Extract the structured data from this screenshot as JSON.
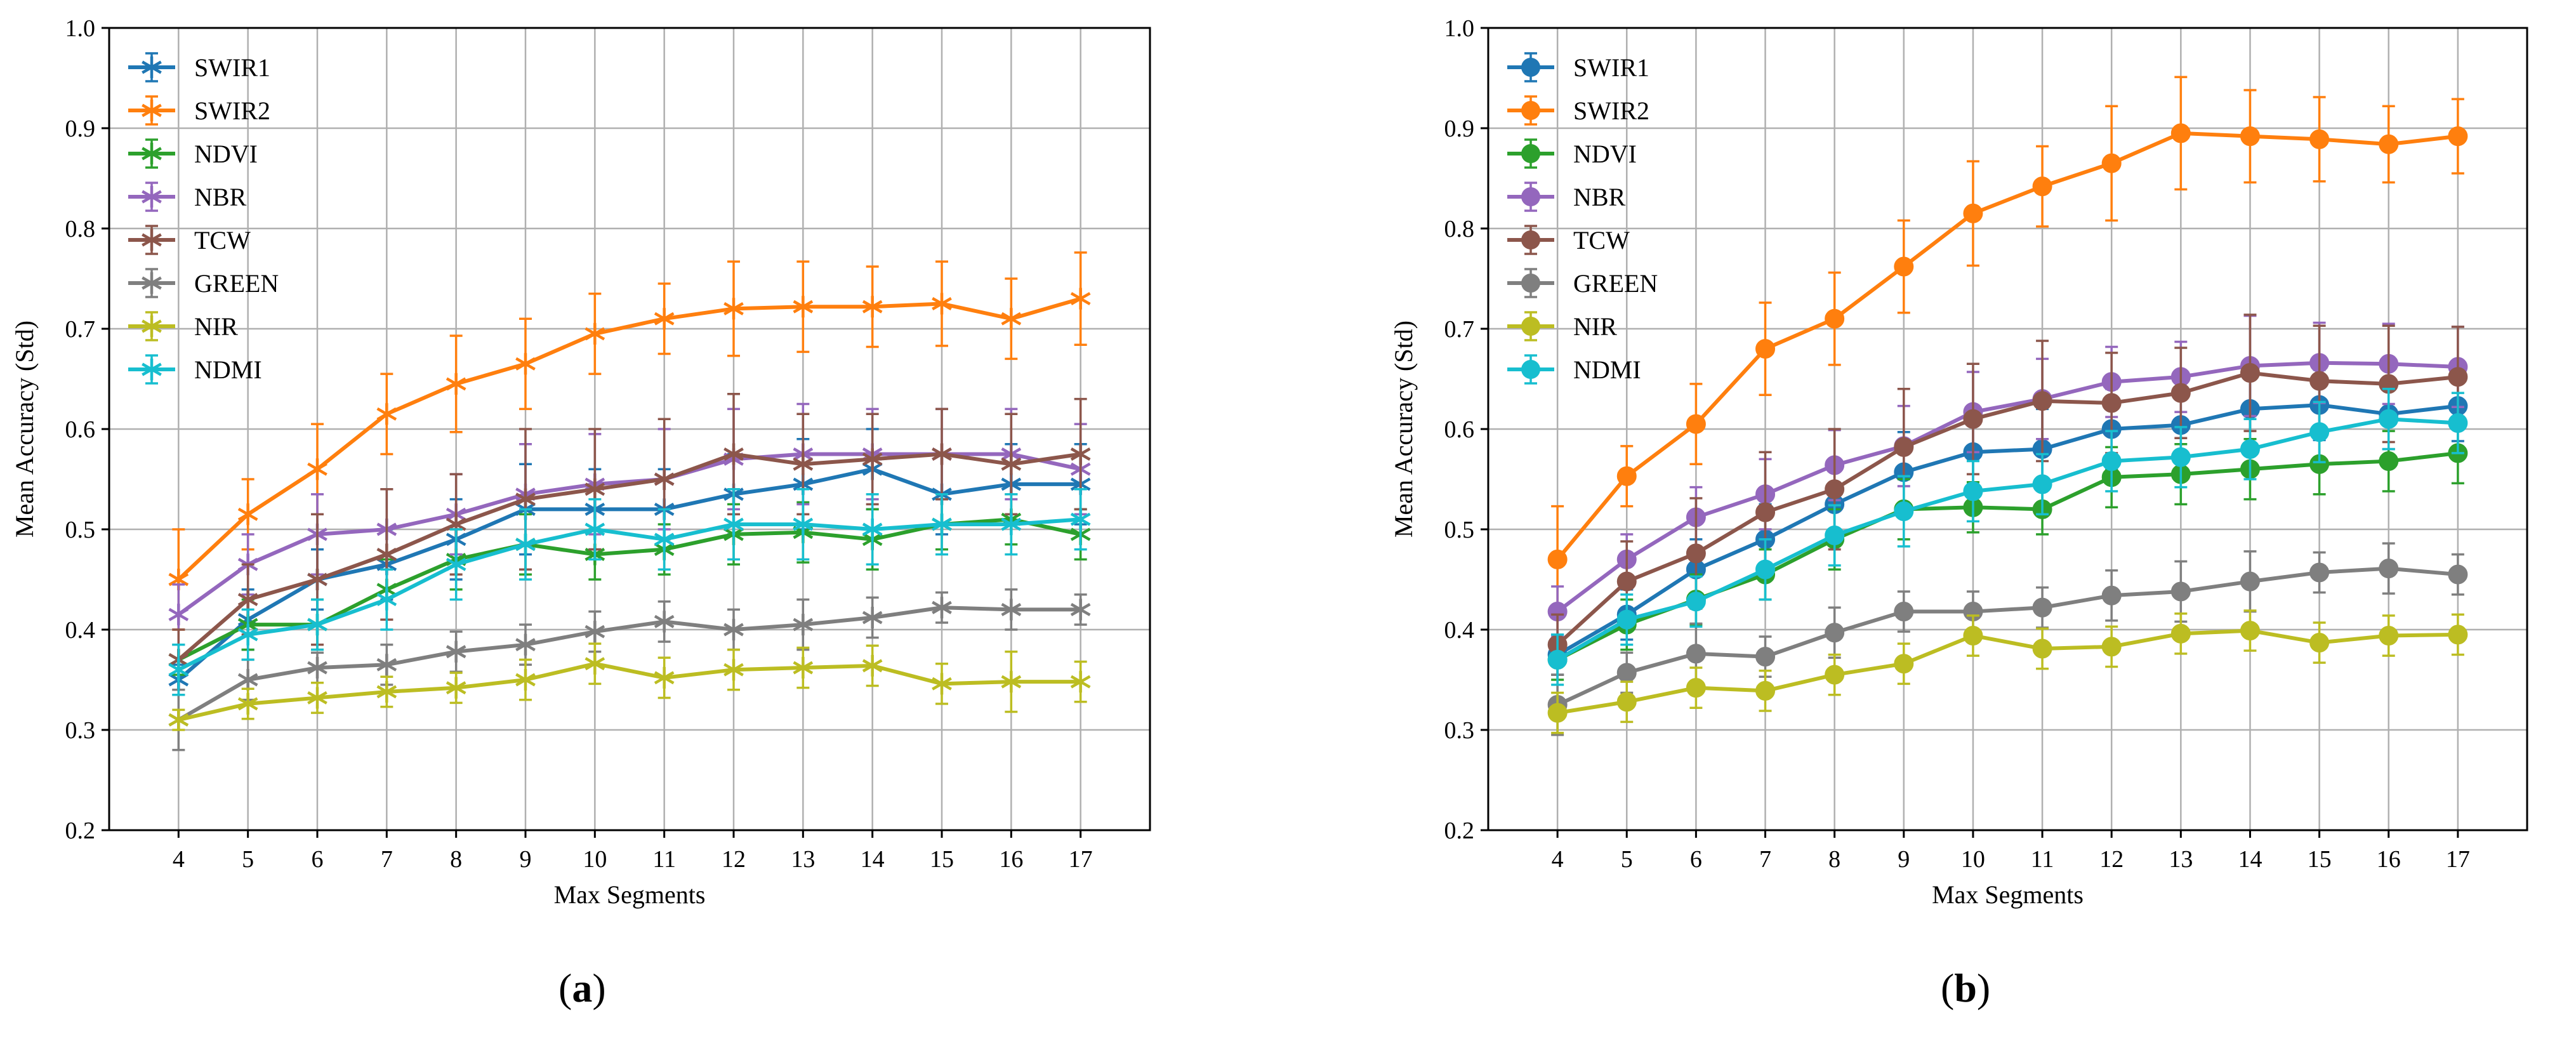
{
  "colors": {
    "SWIR1": "#1f77b4",
    "SWIR2": "#ff7f0e",
    "NDVI": "#2ca02c",
    "NBR": "#9467bd",
    "TCW": "#8c564b",
    "GREEN": "#7f7f7f",
    "NIR": "#bcbd22",
    "NDMI": "#17becf",
    "grid": "#b0b0b0",
    "axis": "#000000"
  },
  "captions": {
    "a": {
      "open": "(",
      "letter": "a",
      "close": ")"
    },
    "b": {
      "open": "(",
      "letter": "b",
      "close": ")"
    }
  },
  "chart_data": [
    {
      "id": "a",
      "type": "line",
      "marker": "star",
      "title": "",
      "xlabel": "Max Segments",
      "ylabel": "Mean Accuracy (Std)",
      "x": [
        4,
        5,
        6,
        7,
        8,
        9,
        10,
        11,
        12,
        13,
        14,
        15,
        16,
        17
      ],
      "xticks": [
        "4",
        "5",
        "6",
        "7",
        "8",
        "9",
        "10",
        "11",
        "12",
        "13",
        "14",
        "15",
        "16",
        "17"
      ],
      "xlim": [
        3,
        18
      ],
      "ylim": [
        0.2,
        1.0
      ],
      "yticks": [
        "0.2",
        "0.3",
        "0.4",
        "0.5",
        "0.6",
        "0.7",
        "0.8",
        "0.9",
        "1.0"
      ],
      "grid": true,
      "legend_position": "top-left",
      "series": [
        {
          "name": "SWIR1",
          "values": [
            0.35,
            0.41,
            0.45,
            0.465,
            0.49,
            0.52,
            0.52,
            0.52,
            0.535,
            0.545,
            0.56,
            0.535,
            0.545,
            0.545
          ],
          "errors": [
            0.015,
            0.03,
            0.03,
            0.035,
            0.04,
            0.045,
            0.04,
            0.04,
            0.04,
            0.045,
            0.04,
            0.04,
            0.04,
            0.04
          ]
        },
        {
          "name": "SWIR2",
          "values": [
            0.45,
            0.515,
            0.56,
            0.615,
            0.645,
            0.665,
            0.695,
            0.71,
            0.72,
            0.722,
            0.722,
            0.725,
            0.71,
            0.73
          ],
          "errors": [
            0.05,
            0.035,
            0.045,
            0.04,
            0.048,
            0.045,
            0.04,
            0.035,
            0.047,
            0.045,
            0.04,
            0.042,
            0.04,
            0.046
          ]
        },
        {
          "name": "NDVI",
          "values": [
            0.37,
            0.405,
            0.405,
            0.44,
            0.47,
            0.485,
            0.475,
            0.48,
            0.495,
            0.497,
            0.49,
            0.505,
            0.51,
            0.495
          ],
          "errors": [
            0.015,
            0.025,
            0.025,
            0.03,
            0.03,
            0.03,
            0.025,
            0.025,
            0.03,
            0.03,
            0.03,
            0.025,
            0.025,
            0.025
          ]
        },
        {
          "name": "NBR",
          "values": [
            0.415,
            0.465,
            0.495,
            0.5,
            0.515,
            0.535,
            0.545,
            0.55,
            0.57,
            0.575,
            0.575,
            0.575,
            0.575,
            0.56
          ],
          "errors": [
            0.03,
            0.03,
            0.04,
            0.04,
            0.04,
            0.05,
            0.05,
            0.05,
            0.05,
            0.05,
            0.045,
            0.045,
            0.045,
            0.045
          ]
        },
        {
          "name": "TCW",
          "values": [
            0.37,
            0.43,
            0.45,
            0.475,
            0.505,
            0.53,
            0.54,
            0.55,
            0.575,
            0.565,
            0.57,
            0.575,
            0.565,
            0.575
          ],
          "errors": [
            0.03,
            0.035,
            0.065,
            0.065,
            0.05,
            0.07,
            0.06,
            0.06,
            0.06,
            0.05,
            0.045,
            0.045,
            0.05,
            0.055
          ]
        },
        {
          "name": "GREEN",
          "values": [
            0.31,
            0.35,
            0.362,
            0.365,
            0.378,
            0.385,
            0.398,
            0.408,
            0.4,
            0.405,
            0.412,
            0.422,
            0.42,
            0.42
          ],
          "errors": [
            0.03,
            0.02,
            0.015,
            0.02,
            0.02,
            0.02,
            0.02,
            0.02,
            0.02,
            0.025,
            0.02,
            0.015,
            0.02,
            0.015
          ]
        },
        {
          "name": "NIR",
          "values": [
            0.31,
            0.326,
            0.332,
            0.338,
            0.342,
            0.35,
            0.366,
            0.352,
            0.36,
            0.362,
            0.364,
            0.346,
            0.348,
            0.348
          ],
          "errors": [
            0.01,
            0.015,
            0.015,
            0.015,
            0.015,
            0.02,
            0.02,
            0.02,
            0.02,
            0.02,
            0.02,
            0.02,
            0.03,
            0.02
          ]
        },
        {
          "name": "NDMI",
          "values": [
            0.36,
            0.395,
            0.405,
            0.43,
            0.465,
            0.485,
            0.5,
            0.49,
            0.505,
            0.505,
            0.5,
            0.505,
            0.505,
            0.51
          ],
          "errors": [
            0.025,
            0.025,
            0.025,
            0.03,
            0.035,
            0.035,
            0.03,
            0.03,
            0.035,
            0.035,
            0.035,
            0.03,
            0.03,
            0.03
          ]
        }
      ]
    },
    {
      "id": "b",
      "type": "line",
      "marker": "circle",
      "title": "",
      "xlabel": "Max Segments",
      "ylabel": "Mean Accuracy (Std)",
      "x": [
        4,
        5,
        6,
        7,
        8,
        9,
        10,
        11,
        12,
        13,
        14,
        15,
        16,
        17
      ],
      "xticks": [
        "4",
        "5",
        "6",
        "7",
        "8",
        "9",
        "10",
        "11",
        "12",
        "13",
        "14",
        "15",
        "16",
        "17"
      ],
      "xlim": [
        3,
        18
      ],
      "ylim": [
        0.2,
        1.0
      ],
      "yticks": [
        "0.2",
        "0.3",
        "0.4",
        "0.5",
        "0.6",
        "0.7",
        "0.8",
        "0.9",
        "1.0"
      ],
      "grid": true,
      "legend_position": "top-left",
      "series": [
        {
          "name": "SWIR1",
          "values": [
            0.375,
            0.415,
            0.46,
            0.49,
            0.525,
            0.557,
            0.577,
            0.58,
            0.6,
            0.604,
            0.62,
            0.624,
            0.615,
            0.623
          ],
          "errors": [
            0.02,
            0.025,
            0.03,
            0.035,
            0.035,
            0.04,
            0.04,
            0.04,
            0.04,
            0.035,
            0.035,
            0.035,
            0.035,
            0.035
          ]
        },
        {
          "name": "SWIR2",
          "values": [
            0.47,
            0.553,
            0.605,
            0.68,
            0.71,
            0.762,
            0.815,
            0.842,
            0.865,
            0.895,
            0.892,
            0.889,
            0.884,
            0.892
          ],
          "errors": [
            0.053,
            0.03,
            0.04,
            0.046,
            0.046,
            0.046,
            0.052,
            0.04,
            0.057,
            0.056,
            0.046,
            0.042,
            0.038,
            0.037
          ]
        },
        {
          "name": "NDVI",
          "values": [
            0.37,
            0.405,
            0.43,
            0.455,
            0.49,
            0.52,
            0.522,
            0.52,
            0.552,
            0.555,
            0.56,
            0.565,
            0.568,
            0.576
          ],
          "errors": [
            0.02,
            0.025,
            0.025,
            0.025,
            0.03,
            0.03,
            0.025,
            0.025,
            0.03,
            0.03,
            0.03,
            0.03,
            0.03,
            0.03
          ]
        },
        {
          "name": "NBR",
          "values": [
            0.418,
            0.47,
            0.512,
            0.535,
            0.564,
            0.583,
            0.617,
            0.63,
            0.647,
            0.652,
            0.663,
            0.666,
            0.665,
            0.662
          ],
          "errors": [
            0.025,
            0.025,
            0.03,
            0.035,
            0.035,
            0.04,
            0.04,
            0.04,
            0.035,
            0.035,
            0.05,
            0.04,
            0.04,
            0.04
          ]
        },
        {
          "name": "TCW",
          "values": [
            0.385,
            0.448,
            0.476,
            0.517,
            0.54,
            0.582,
            0.61,
            0.628,
            0.626,
            0.636,
            0.656,
            0.648,
            0.645,
            0.652
          ],
          "errors": [
            0.03,
            0.04,
            0.055,
            0.06,
            0.06,
            0.058,
            0.055,
            0.06,
            0.05,
            0.045,
            0.058,
            0.055,
            0.058,
            0.05
          ]
        },
        {
          "name": "GREEN",
          "values": [
            0.325,
            0.357,
            0.376,
            0.373,
            0.397,
            0.418,
            0.418,
            0.422,
            0.434,
            0.438,
            0.448,
            0.457,
            0.461,
            0.455
          ],
          "errors": [
            0.03,
            0.02,
            0.03,
            0.02,
            0.025,
            0.02,
            0.02,
            0.02,
            0.025,
            0.03,
            0.03,
            0.02,
            0.025,
            0.02
          ]
        },
        {
          "name": "NIR",
          "values": [
            0.317,
            0.328,
            0.342,
            0.339,
            0.355,
            0.366,
            0.394,
            0.381,
            0.383,
            0.396,
            0.399,
            0.387,
            0.394,
            0.395
          ],
          "errors": [
            0.02,
            0.02,
            0.02,
            0.02,
            0.02,
            0.02,
            0.02,
            0.02,
            0.02,
            0.02,
            0.02,
            0.02,
            0.02,
            0.02
          ]
        },
        {
          "name": "NDMI",
          "values": [
            0.37,
            0.41,
            0.428,
            0.46,
            0.494,
            0.518,
            0.538,
            0.545,
            0.568,
            0.572,
            0.58,
            0.597,
            0.61,
            0.606
          ],
          "errors": [
            0.025,
            0.025,
            0.025,
            0.03,
            0.03,
            0.035,
            0.03,
            0.03,
            0.03,
            0.03,
            0.03,
            0.03,
            0.03,
            0.03
          ]
        }
      ]
    }
  ]
}
